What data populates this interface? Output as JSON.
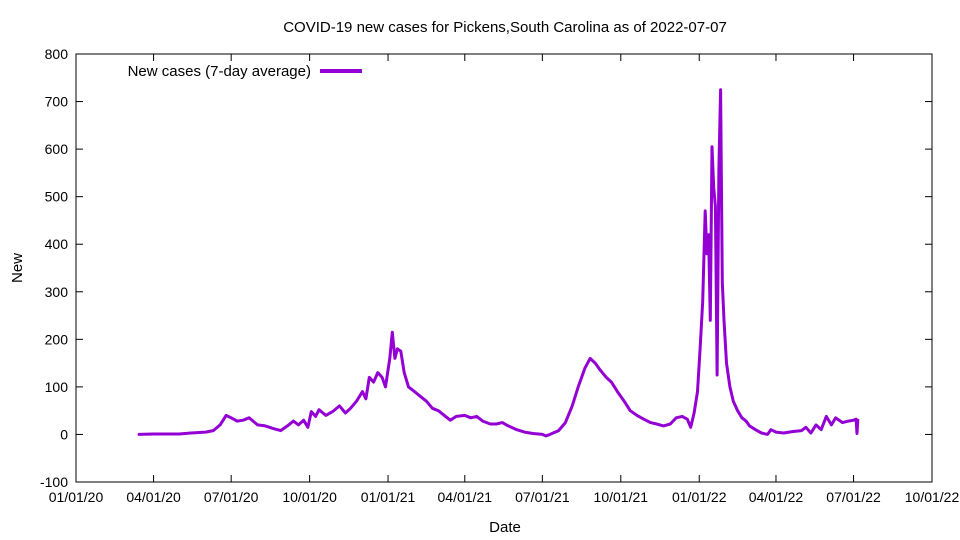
{
  "chart_data": {
    "type": "line",
    "title": "COVID-19 new cases for Pickens,South Carolina as of 2022-07-07",
    "xlabel": "Date",
    "ylabel": "New",
    "xlim": [
      "2020-01-01",
      "2022-10-01"
    ],
    "ylim": [
      -100,
      800
    ],
    "x_ticks": [
      {
        "date": "2020-01-01",
        "label": "01/01/20"
      },
      {
        "date": "2020-04-01",
        "label": "04/01/20"
      },
      {
        "date": "2020-07-01",
        "label": "07/01/20"
      },
      {
        "date": "2020-10-01",
        "label": "10/01/20"
      },
      {
        "date": "2021-01-01",
        "label": "01/01/21"
      },
      {
        "date": "2021-04-01",
        "label": "04/01/21"
      },
      {
        "date": "2021-07-01",
        "label": "07/01/21"
      },
      {
        "date": "2021-10-01",
        "label": "10/01/21"
      },
      {
        "date": "2022-01-01",
        "label": "01/01/22"
      },
      {
        "date": "2022-04-01",
        "label": "04/01/22"
      },
      {
        "date": "2022-07-01",
        "label": "07/01/22"
      },
      {
        "date": "2022-10-01",
        "label": "10/01/22"
      }
    ],
    "y_ticks": [
      -100,
      0,
      100,
      200,
      300,
      400,
      500,
      600,
      700,
      800
    ],
    "grid": false,
    "legend_position": "top-left",
    "series": [
      {
        "name": "New cases (7-day average)",
        "color": "#9400D3",
        "points": [
          [
            "2020-03-15",
            0
          ],
          [
            "2020-04-01",
            1
          ],
          [
            "2020-04-15",
            1
          ],
          [
            "2020-05-01",
            1
          ],
          [
            "2020-05-15",
            3
          ],
          [
            "2020-06-01",
            5
          ],
          [
            "2020-06-10",
            8
          ],
          [
            "2020-06-18",
            20
          ],
          [
            "2020-06-25",
            40
          ],
          [
            "2020-07-01",
            35
          ],
          [
            "2020-07-08",
            28
          ],
          [
            "2020-07-15",
            30
          ],
          [
            "2020-07-22",
            35
          ],
          [
            "2020-08-01",
            20
          ],
          [
            "2020-08-10",
            18
          ],
          [
            "2020-08-20",
            12
          ],
          [
            "2020-08-28",
            8
          ],
          [
            "2020-09-05",
            18
          ],
          [
            "2020-09-12",
            28
          ],
          [
            "2020-09-18",
            20
          ],
          [
            "2020-09-24",
            30
          ],
          [
            "2020-09-29",
            15
          ],
          [
            "2020-10-03",
            48
          ],
          [
            "2020-10-08",
            38
          ],
          [
            "2020-10-12",
            52
          ],
          [
            "2020-10-20",
            40
          ],
          [
            "2020-10-28",
            48
          ],
          [
            "2020-11-05",
            60
          ],
          [
            "2020-11-12",
            45
          ],
          [
            "2020-11-18",
            55
          ],
          [
            "2020-11-25",
            70
          ],
          [
            "2020-12-02",
            90
          ],
          [
            "2020-12-06",
            75
          ],
          [
            "2020-12-10",
            120
          ],
          [
            "2020-12-15",
            110
          ],
          [
            "2020-12-20",
            130
          ],
          [
            "2020-12-25",
            120
          ],
          [
            "2020-12-29",
            100
          ],
          [
            "2021-01-03",
            160
          ],
          [
            "2021-01-06",
            215
          ],
          [
            "2021-01-09",
            160
          ],
          [
            "2021-01-12",
            180
          ],
          [
            "2021-01-16",
            175
          ],
          [
            "2021-01-20",
            130
          ],
          [
            "2021-01-25",
            100
          ],
          [
            "2021-02-01",
            90
          ],
          [
            "2021-02-08",
            80
          ],
          [
            "2021-02-15",
            70
          ],
          [
            "2021-02-22",
            55
          ],
          [
            "2021-03-01",
            50
          ],
          [
            "2021-03-08",
            40
          ],
          [
            "2021-03-15",
            30
          ],
          [
            "2021-03-22",
            38
          ],
          [
            "2021-04-01",
            40
          ],
          [
            "2021-04-08",
            35
          ],
          [
            "2021-04-15",
            38
          ],
          [
            "2021-04-22",
            28
          ],
          [
            "2021-05-01",
            22
          ],
          [
            "2021-05-08",
            22
          ],
          [
            "2021-05-15",
            25
          ],
          [
            "2021-05-22",
            18
          ],
          [
            "2021-06-01",
            10
          ],
          [
            "2021-06-10",
            5
          ],
          [
            "2021-06-20",
            2
          ],
          [
            "2021-07-01",
            0
          ],
          [
            "2021-07-05",
            -3
          ],
          [
            "2021-07-10",
            0
          ],
          [
            "2021-07-20",
            8
          ],
          [
            "2021-07-28",
            25
          ],
          [
            "2021-08-05",
            60
          ],
          [
            "2021-08-12",
            100
          ],
          [
            "2021-08-20",
            140
          ],
          [
            "2021-08-26",
            160
          ],
          [
            "2021-09-01",
            150
          ],
          [
            "2021-09-07",
            135
          ],
          [
            "2021-09-14",
            120
          ],
          [
            "2021-09-20",
            110
          ],
          [
            "2021-09-27",
            90
          ],
          [
            "2021-10-05",
            70
          ],
          [
            "2021-10-12",
            50
          ],
          [
            "2021-10-20",
            40
          ],
          [
            "2021-10-28",
            32
          ],
          [
            "2021-11-05",
            25
          ],
          [
            "2021-11-12",
            22
          ],
          [
            "2021-11-20",
            18
          ],
          [
            "2021-11-28",
            22
          ],
          [
            "2021-12-05",
            35
          ],
          [
            "2021-12-12",
            38
          ],
          [
            "2021-12-18",
            32
          ],
          [
            "2021-12-22",
            15
          ],
          [
            "2021-12-26",
            45
          ],
          [
            "2021-12-30",
            90
          ],
          [
            "2022-01-02",
            180
          ],
          [
            "2022-01-05",
            280
          ],
          [
            "2022-01-08",
            470
          ],
          [
            "2022-01-10",
            380
          ],
          [
            "2022-01-12",
            420
          ],
          [
            "2022-01-14",
            240
          ],
          [
            "2022-01-16",
            605
          ],
          [
            "2022-01-18",
            520
          ],
          [
            "2022-01-20",
            480
          ],
          [
            "2022-01-22",
            125
          ],
          [
            "2022-01-24",
            560
          ],
          [
            "2022-01-26",
            725
          ],
          [
            "2022-01-28",
            320
          ],
          [
            "2022-01-30",
            240
          ],
          [
            "2022-02-02",
            150
          ],
          [
            "2022-02-06",
            100
          ],
          [
            "2022-02-10",
            70
          ],
          [
            "2022-02-15",
            50
          ],
          [
            "2022-02-20",
            35
          ],
          [
            "2022-02-25",
            28
          ],
          [
            "2022-03-01",
            18
          ],
          [
            "2022-03-08",
            10
          ],
          [
            "2022-03-15",
            3
          ],
          [
            "2022-03-22",
            0
          ],
          [
            "2022-03-26",
            10
          ],
          [
            "2022-04-01",
            5
          ],
          [
            "2022-04-10",
            3
          ],
          [
            "2022-04-20",
            6
          ],
          [
            "2022-05-01",
            8
          ],
          [
            "2022-05-06",
            15
          ],
          [
            "2022-05-12",
            3
          ],
          [
            "2022-05-18",
            20
          ],
          [
            "2022-05-24",
            10
          ],
          [
            "2022-05-30",
            38
          ],
          [
            "2022-06-05",
            20
          ],
          [
            "2022-06-10",
            35
          ],
          [
            "2022-06-18",
            25
          ],
          [
            "2022-06-25",
            28
          ],
          [
            "2022-07-01",
            30
          ],
          [
            "2022-07-04",
            32
          ],
          [
            "2022-07-05",
            2
          ],
          [
            "2022-07-06",
            30
          ]
        ]
      }
    ]
  }
}
